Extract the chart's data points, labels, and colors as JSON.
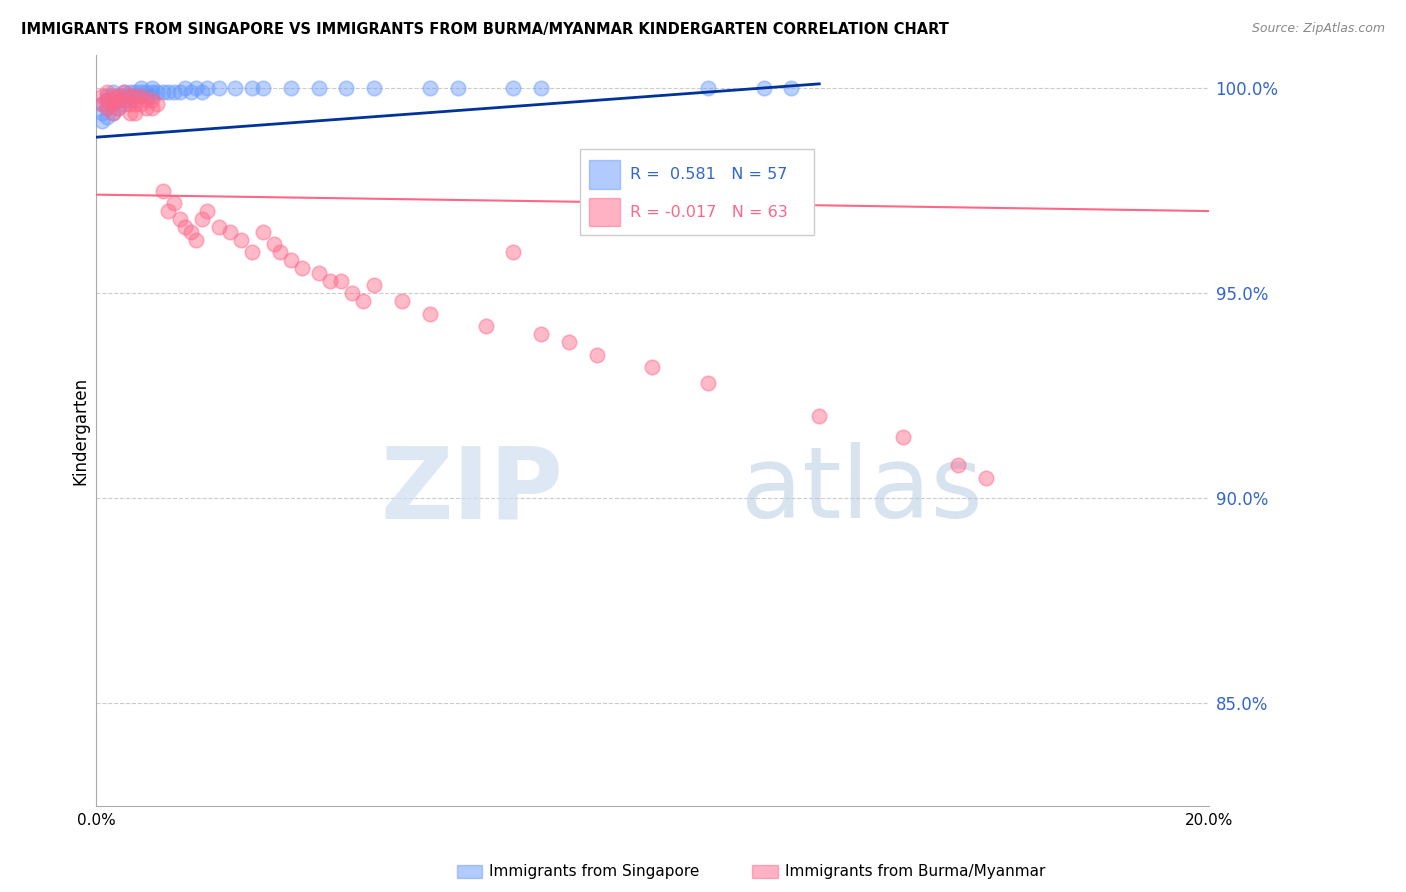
{
  "title": "IMMIGRANTS FROM SINGAPORE VS IMMIGRANTS FROM BURMA/MYANMAR KINDERGARTEN CORRELATION CHART",
  "source": "Source: ZipAtlas.com",
  "ylabel": "Kindergarten",
  "xlim": [
    0.0,
    0.2
  ],
  "ylim": [
    0.825,
    1.008
  ],
  "yticks": [
    0.85,
    0.9,
    0.95,
    1.0
  ],
  "ytick_labels": [
    "85.0%",
    "90.0%",
    "95.0%",
    "100.0%"
  ],
  "xticks": [
    0.0,
    0.05,
    0.1,
    0.15,
    0.2
  ],
  "xtick_labels": [
    "0.0%",
    "",
    "",
    "",
    "20.0%"
  ],
  "legend_r1": "R =  0.581",
  "legend_n1": "N = 57",
  "legend_r2": "R = -0.017",
  "legend_n2": "N = 63",
  "color_singapore": "#6699ff",
  "color_burma": "#ff6688",
  "color_trend_singapore": "#003399",
  "color_trend_burma": "#ff6688",
  "watermark_zip": "ZIP",
  "watermark_atlas": "atlas",
  "singapore_x": [
    0.001,
    0.001,
    0.001,
    0.002,
    0.002,
    0.002,
    0.002,
    0.003,
    0.003,
    0.003,
    0.003,
    0.004,
    0.004,
    0.004,
    0.005,
    0.005,
    0.005,
    0.005,
    0.006,
    0.006,
    0.006,
    0.007,
    0.007,
    0.007,
    0.008,
    0.008,
    0.008,
    0.009,
    0.009,
    0.01,
    0.01,
    0.01,
    0.011,
    0.012,
    0.013,
    0.014,
    0.015,
    0.016,
    0.017,
    0.018,
    0.019,
    0.02,
    0.022,
    0.025,
    0.028,
    0.03,
    0.035,
    0.04,
    0.045,
    0.05,
    0.06,
    0.065,
    0.075,
    0.08,
    0.11,
    0.12,
    0.125
  ],
  "singapore_y": [
    0.992,
    0.994,
    0.996,
    0.993,
    0.995,
    0.997,
    0.998,
    0.994,
    0.996,
    0.997,
    0.999,
    0.995,
    0.997,
    0.998,
    0.996,
    0.997,
    0.998,
    0.999,
    0.997,
    0.998,
    0.999,
    0.997,
    0.998,
    0.999,
    0.998,
    0.999,
    1.0,
    0.998,
    0.999,
    0.998,
    0.999,
    1.0,
    0.999,
    0.999,
    0.999,
    0.999,
    0.999,
    1.0,
    0.999,
    1.0,
    0.999,
    1.0,
    1.0,
    1.0,
    1.0,
    1.0,
    1.0,
    1.0,
    1.0,
    1.0,
    1.0,
    1.0,
    1.0,
    1.0,
    1.0,
    1.0,
    1.0
  ],
  "burma_x": [
    0.001,
    0.001,
    0.002,
    0.002,
    0.002,
    0.003,
    0.003,
    0.003,
    0.004,
    0.004,
    0.004,
    0.005,
    0.005,
    0.006,
    0.006,
    0.006,
    0.007,
    0.007,
    0.007,
    0.008,
    0.008,
    0.009,
    0.009,
    0.01,
    0.01,
    0.011,
    0.012,
    0.013,
    0.014,
    0.015,
    0.016,
    0.017,
    0.018,
    0.019,
    0.02,
    0.022,
    0.024,
    0.026,
    0.028,
    0.03,
    0.032,
    0.033,
    0.035,
    0.037,
    0.04,
    0.042,
    0.044,
    0.046,
    0.048,
    0.05,
    0.055,
    0.06,
    0.07,
    0.075,
    0.08,
    0.085,
    0.09,
    0.1,
    0.11,
    0.13,
    0.145,
    0.155,
    0.16
  ],
  "burma_y": [
    0.998,
    0.996,
    0.999,
    0.997,
    0.995,
    0.998,
    0.996,
    0.994,
    0.998,
    0.997,
    0.995,
    0.999,
    0.997,
    0.998,
    0.996,
    0.994,
    0.998,
    0.996,
    0.994,
    0.998,
    0.996,
    0.997,
    0.995,
    0.997,
    0.995,
    0.996,
    0.975,
    0.97,
    0.972,
    0.968,
    0.966,
    0.965,
    0.963,
    0.968,
    0.97,
    0.966,
    0.965,
    0.963,
    0.96,
    0.965,
    0.962,
    0.96,
    0.958,
    0.956,
    0.955,
    0.953,
    0.953,
    0.95,
    0.948,
    0.952,
    0.948,
    0.945,
    0.942,
    0.96,
    0.94,
    0.938,
    0.935,
    0.932,
    0.928,
    0.92,
    0.915,
    0.908,
    0.905
  ]
}
